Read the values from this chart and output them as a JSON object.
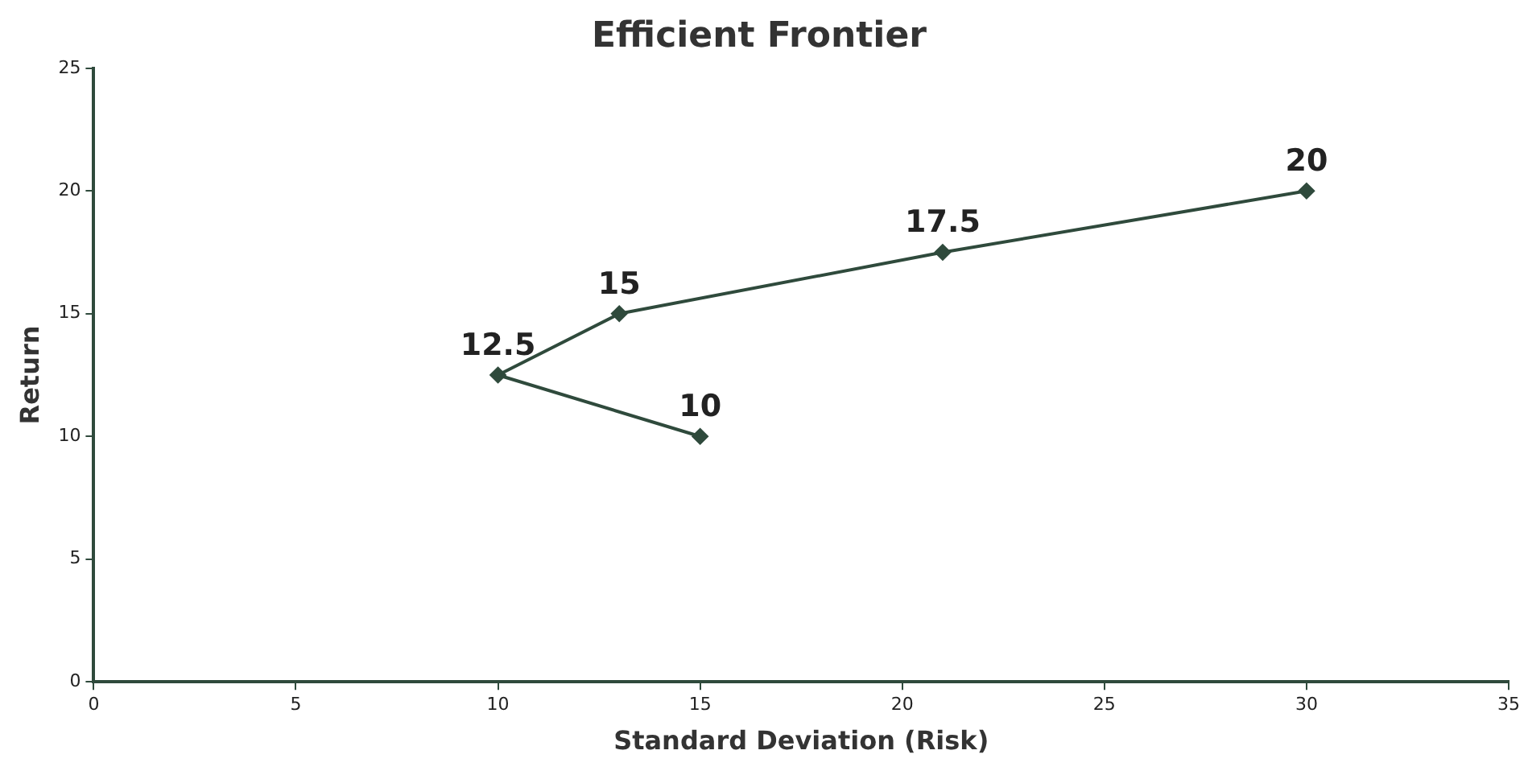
{
  "chart_data": {
    "type": "line",
    "title": "Efficient Frontier",
    "xlabel": "Standard Deviation (Risk)",
    "ylabel": "Return",
    "x": [
      15,
      10,
      13,
      21,
      30
    ],
    "series": [
      {
        "color": "#2f4a3c",
        "values": [
          10,
          12.5,
          15,
          17.5,
          20
        ]
      }
    ],
    "xlim": [
      0,
      35
    ],
    "xticks": [
      0,
      5,
      10,
      15,
      20,
      25,
      30,
      35
    ],
    "ylim": [
      0,
      25
    ],
    "yticks": [
      0,
      5,
      10,
      15,
      20,
      25
    ],
    "grid": false,
    "legend": false,
    "marker": "diamond",
    "line_style": "solid",
    "data_labels": true
  }
}
